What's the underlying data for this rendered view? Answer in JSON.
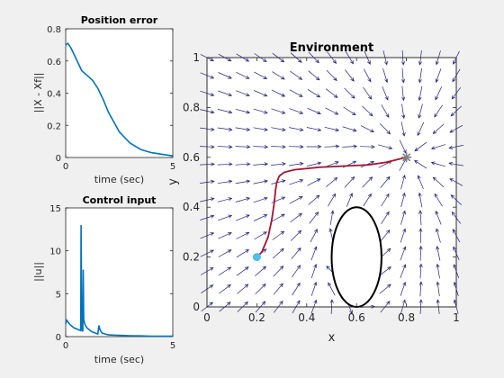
{
  "chart_data": [
    {
      "id": "pos",
      "type": "line",
      "title": "Position error",
      "xlabel": "time (sec)",
      "ylabel": "||X - Xf||",
      "xlim": [
        0,
        5
      ],
      "ylim": [
        0,
        0.8
      ],
      "xticks": [
        0,
        5
      ],
      "yticks": [
        0,
        0.2,
        0.4,
        0.6,
        0.8
      ],
      "color": "#0072bd",
      "x": [
        0,
        0.1,
        0.25,
        0.5,
        0.75,
        1.0,
        1.25,
        1.5,
        1.75,
        2.0,
        2.5,
        3.0,
        3.5,
        4.0,
        4.5,
        5.0
      ],
      "y": [
        0.7,
        0.71,
        0.68,
        0.61,
        0.54,
        0.51,
        0.48,
        0.43,
        0.36,
        0.28,
        0.16,
        0.09,
        0.05,
        0.03,
        0.02,
        0.01
      ]
    },
    {
      "id": "ctrl",
      "type": "line",
      "title": "Control input",
      "xlabel": "time (sec)",
      "ylabel": "||u||",
      "xlim": [
        0,
        5
      ],
      "ylim": [
        0,
        15
      ],
      "xticks": [
        0,
        5
      ],
      "yticks": [
        0,
        5,
        10,
        15
      ],
      "color": "#0072bd",
      "x": [
        0,
        0.05,
        0.2,
        0.4,
        0.6,
        0.7,
        0.72,
        0.74,
        0.76,
        0.8,
        0.82,
        0.84,
        0.9,
        1.0,
        1.2,
        1.4,
        1.5,
        1.55,
        1.6,
        1.7,
        2.0,
        2.5,
        3.0,
        3.5,
        4.0,
        5.0
      ],
      "y": [
        1.5,
        1.9,
        1.4,
        1.0,
        0.8,
        0.7,
        13.0,
        5.0,
        0.8,
        0.6,
        7.8,
        2.0,
        1.4,
        1.0,
        0.6,
        0.4,
        0.3,
        1.3,
        0.8,
        0.4,
        0.2,
        0.15,
        0.1,
        0.08,
        0.05,
        0.05
      ]
    },
    {
      "id": "env",
      "type": "line",
      "title": "Environment",
      "xlabel": "x",
      "ylabel": "y",
      "xlim": [
        0,
        1
      ],
      "ylim": [
        0,
        1
      ],
      "xticks": [
        0,
        0.2,
        0.4,
        0.6,
        0.8,
        1
      ],
      "yticks": [
        0,
        0.2,
        0.4,
        0.6,
        0.8,
        1
      ],
      "trajectory_color": "#a2142f",
      "field_color": "#1f1f7a",
      "start_color": "#4dbeee",
      "goal_color": "#808080",
      "trajectory": {
        "x": [
          0.2,
          0.22,
          0.245,
          0.26,
          0.27,
          0.275,
          0.28,
          0.29,
          0.31,
          0.35,
          0.45,
          0.55,
          0.65,
          0.72,
          0.8
        ],
        "y": [
          0.2,
          0.22,
          0.28,
          0.35,
          0.42,
          0.47,
          0.5,
          0.525,
          0.54,
          0.55,
          0.56,
          0.565,
          0.57,
          0.58,
          0.6
        ]
      },
      "start": [
        0.2,
        0.2
      ],
      "goal": [
        0.8,
        0.6
      ],
      "obstacle": {
        "cx": 0.6,
        "cy": 0.2,
        "rx": 0.1,
        "ry": 0.2
      }
    }
  ]
}
